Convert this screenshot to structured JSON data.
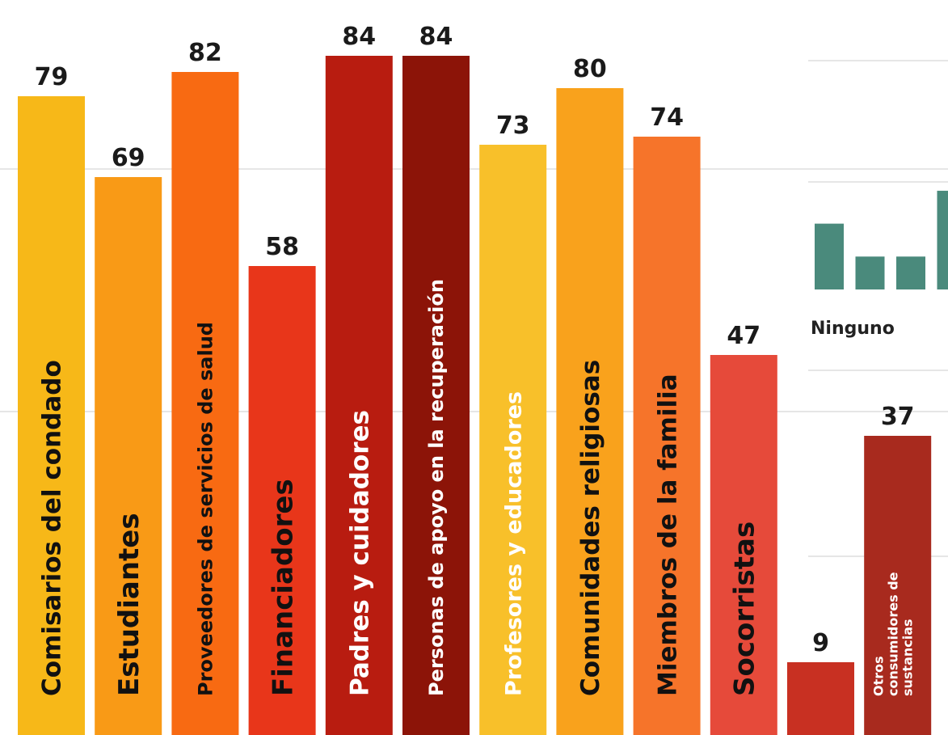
{
  "chart_data": {
    "type": "bar",
    "categories": [
      "Comisarios del condado",
      "Estudiantes",
      "Proveedores de servicios de salud",
      "Financiadores",
      "Padres y cuidadores",
      "Personas de apoyo en la recuperación",
      "Profesores y educadores",
      "Comunidades religiosas",
      "Miembros de la familia",
      "Socorristas",
      "",
      "Otros consumidores de sustancias"
    ],
    "values": [
      79,
      69,
      82,
      58,
      84,
      84,
      73,
      80,
      74,
      47,
      9,
      37
    ],
    "colors": [
      "#f7b818",
      "#f99a16",
      "#f86a12",
      "#e8361a",
      "#b81c10",
      "#8c1408",
      "#f8c02a",
      "#f9a21c",
      "#f6742a",
      "#e64a3a",
      "#c83022",
      "#a82a1e"
    ],
    "label_colors": [
      "#111111",
      "#111111",
      "#111111",
      "#111111",
      "#ffffff",
      "#ffffff",
      "#ffffff",
      "#111111",
      "#111111",
      "#111111",
      "#ffffff",
      "#ffffff"
    ],
    "ylim": [
      0,
      100
    ],
    "grid": true
  },
  "inset": {
    "label": "Ninguno",
    "values": [
      2.2,
      1.1,
      1.1,
      3.3
    ],
    "color": "#4a8a7c"
  }
}
